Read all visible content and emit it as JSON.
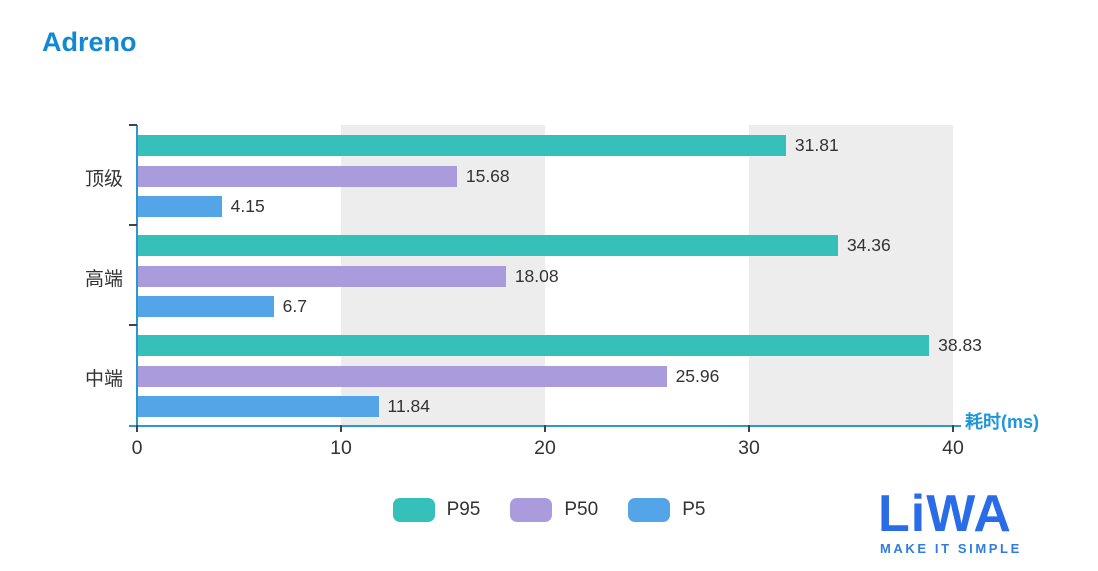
{
  "page": {
    "title": "Adreno"
  },
  "colors": {
    "title_blue": "#1189d2",
    "axis_blue": "#2e97d1",
    "axis_name_blue": "#1d96dc",
    "split_band_gray": "#ededed",
    "label_dark": "#333333",
    "logo_blue": "#2a6be8"
  },
  "chart_data": {
    "type": "bar",
    "orientation": "horizontal",
    "title": "Adreno",
    "categories": [
      "顶级",
      "高端",
      "中端"
    ],
    "series": [
      {
        "name": "P95",
        "color": "#35c1ba",
        "values": [
          31.81,
          34.36,
          38.83
        ]
      },
      {
        "name": "P50",
        "color": "#aa9cdc",
        "values": [
          15.68,
          18.08,
          25.96
        ]
      },
      {
        "name": "P5",
        "color": "#54a4e8",
        "values": [
          4.15,
          6.7,
          11.84
        ]
      }
    ],
    "x_axis": {
      "min": 0,
      "max": 40,
      "ticks": [
        0,
        10,
        20,
        30,
        40
      ],
      "name": "耗时(ms)"
    },
    "y_axis": {
      "labels": [
        "顶级",
        "高端",
        "中端"
      ]
    },
    "legend": {
      "position": "bottom",
      "labels": [
        "P95",
        "P50",
        "P5"
      ]
    },
    "grid": "alternating split-area bands (10-20, 30-40 shaded)",
    "value_labels": "shown at end of each bar"
  },
  "logo": {
    "text": "LiWA",
    "tagline": "MAKE IT SIMPLE"
  }
}
